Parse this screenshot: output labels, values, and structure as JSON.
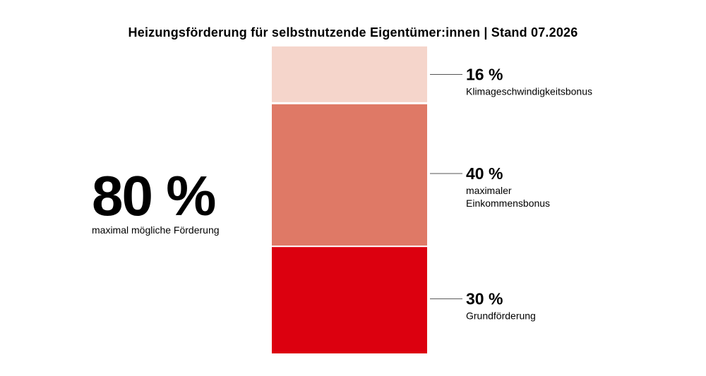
{
  "title": "Heizungsförderung für selbstnutzende Eigentümer:innen | Stand 07.2026",
  "total": {
    "value": "80 %",
    "label": "maximal mögliche Förderung"
  },
  "chart_data": {
    "type": "bar",
    "stacked": true,
    "categories": [
      ""
    ],
    "series": [
      {
        "name": "Grundförderung",
        "value": 30,
        "value_label": "30 %",
        "label_lines": [
          "Grundförderung"
        ],
        "color": "#dc000f"
      },
      {
        "name": "maximaler Einkommensbonus",
        "value": 40,
        "value_label": "40 %",
        "label_lines": [
          "maximaler",
          "Einkommensbonus"
        ],
        "color": "#df7966"
      },
      {
        "name": "Klimageschwindigkeitsbonus",
        "value": 16,
        "value_label": "16 %",
        "label_lines": [
          "Klimageschwindigkeitsbonus"
        ],
        "color": "#f5d5cb"
      }
    ],
    "xlabel": "",
    "ylabel": "",
    "grid": false,
    "legend": "right"
  }
}
